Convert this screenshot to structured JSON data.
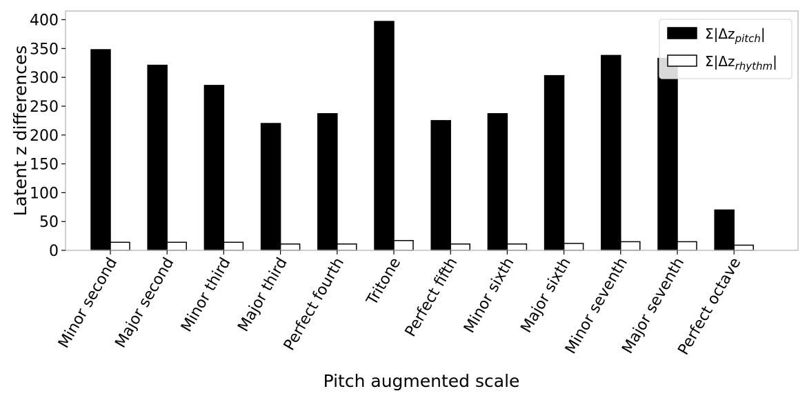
{
  "chart_data": {
    "type": "bar",
    "title": "",
    "xlabel": "Pitch augmented scale",
    "ylabel": "Latent z differences",
    "ylim": [
      0,
      415
    ],
    "yticks": [
      0,
      50,
      100,
      150,
      200,
      250,
      300,
      350,
      400
    ],
    "grid": false,
    "legend_position": "top-right",
    "categories": [
      "Minor second",
      "Major second",
      "Minor third",
      "Major third",
      "Perfect fourth",
      "Tritone",
      "Perfect fifth",
      "Minor sixth",
      "Major sixth",
      "Minor seventh",
      "Major seventh",
      "Perfect octave"
    ],
    "series": [
      {
        "legend": {
          "prefix": "Σ|Δz",
          "sub": "pitch",
          "suffix": "|"
        },
        "fill": "#000000",
        "stroke": "#000000",
        "values": [
          348,
          321,
          286,
          220,
          237,
          397,
          225,
          237,
          303,
          338,
          333,
          70
        ]
      },
      {
        "legend": {
          "prefix": "Σ|Δz",
          "sub": "rhythm",
          "suffix": "|"
        },
        "fill": "#ffffff",
        "stroke": "#000000",
        "values": [
          14,
          14,
          14,
          11,
          11,
          17,
          11,
          11,
          12,
          15,
          15,
          9
        ]
      }
    ]
  }
}
